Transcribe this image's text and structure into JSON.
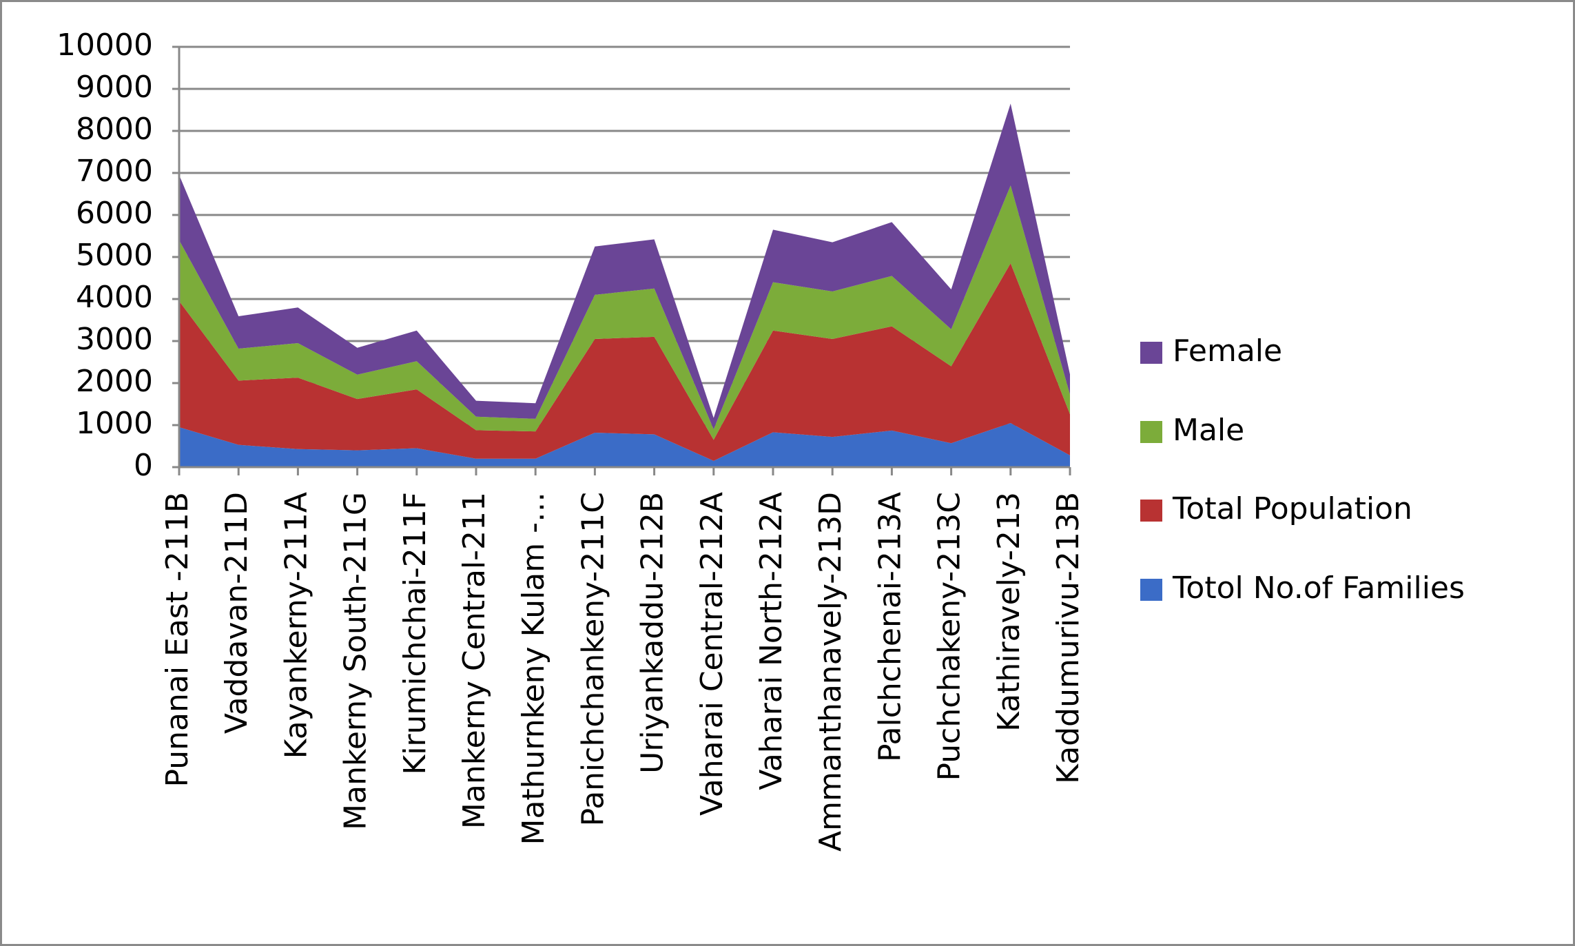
{
  "chart_data": {
    "type": "stacked_area",
    "categories": [
      "Punanai East -211B",
      "Vaddavan-211D",
      "Kayankerny-211A",
      "Mankerny South-211G",
      "Kirumichchai-211F",
      "Mankerny Central-211",
      "Mathurnkeny Kulam -…",
      "Panichchankeny-211C",
      "Uriyankaddu-212B",
      "Vaharai Central-212A",
      "Vaharai North-212A",
      "Ammanthanavely-213D",
      "Palchchenai-213A",
      "Puchchakeny-213C",
      "Kathiravely-213",
      "Kaddumurivu-213B"
    ],
    "series": [
      {
        "name": "Totol No.of Families",
        "color": "#3b6cc7",
        "values": [
          950,
          530,
          430,
          400,
          450,
          200,
          200,
          820,
          780,
          150,
          830,
          720,
          870,
          570,
          1050,
          280
        ]
      },
      {
        "name": "Total Population",
        "color": "#b83232",
        "values": [
          3000,
          1530,
          1700,
          1220,
          1400,
          680,
          650,
          2230,
          2320,
          500,
          2420,
          2330,
          2480,
          1830,
          3800,
          980
        ]
      },
      {
        "name": "Male",
        "color": "#7cac3a",
        "values": [
          1450,
          760,
          820,
          580,
          670,
          320,
          300,
          1050,
          1150,
          250,
          1150,
          1130,
          1200,
          880,
          1850,
          470
        ]
      },
      {
        "name": "Female",
        "color": "#6a4596",
        "values": [
          1550,
          770,
          850,
          640,
          730,
          380,
          370,
          1150,
          1170,
          270,
          1250,
          1170,
          1280,
          950,
          1950,
          480
        ]
      }
    ],
    "ylim": [
      0,
      10000
    ],
    "yticks": [
      0,
      1000,
      2000,
      3000,
      4000,
      5000,
      6000,
      7000,
      8000,
      9000,
      10000
    ],
    "grid": true,
    "legend": "right"
  }
}
